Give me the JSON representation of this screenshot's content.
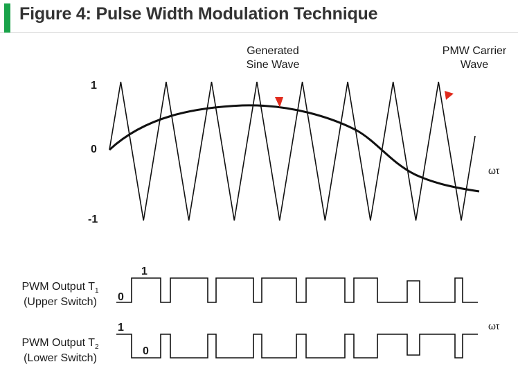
{
  "header": {
    "title": "Figure 4: Pulse Width Modulation Technique",
    "accent_color": "#1aa34a"
  },
  "diagram": {
    "sine_label_line1": "Generated",
    "sine_label_line2": "Sine Wave",
    "carrier_label_line1": "PMW Carrier",
    "carrier_label_line2": "Wave",
    "axis_tick_top": "1",
    "axis_tick_zero": "0",
    "axis_tick_bottom": "-1",
    "axis_label": "ωτ",
    "arrow_color": "#e02a1c",
    "carrier_peak_count": 8
  },
  "upper_output": {
    "label_prefix": "PWM Output T",
    "label_subscript": "1",
    "label_line2": "(Upper Switch)",
    "level_high": "1",
    "level_low": "0"
  },
  "lower_output": {
    "label_prefix": "PWM Output T",
    "label_subscript": "2",
    "label_line2": "(Lower Switch)",
    "level_high": "1",
    "level_low": "0",
    "axis_label": "ωτ"
  }
}
